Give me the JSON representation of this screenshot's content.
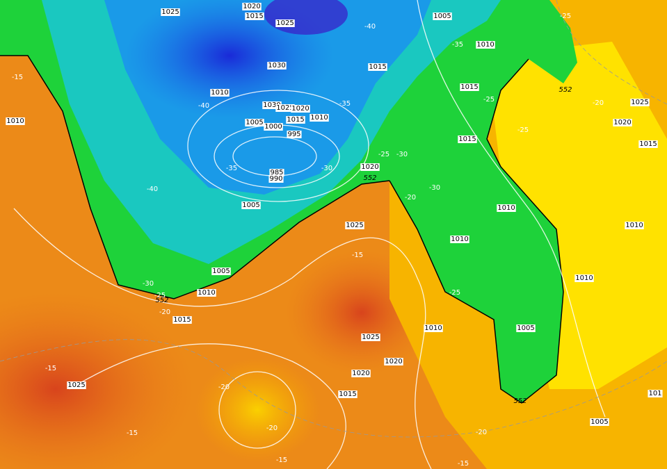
{
  "isobar_labels": [
    "1025",
    "1020",
    "1015",
    "1025",
    "1005",
    "1010",
    "1015",
    "1030",
    "1010",
    "1030",
    "1025",
    "1020",
    "1010",
    "1005",
    "1000",
    "1015",
    "995",
    "985",
    "990",
    "1020",
    "1015",
    "1015",
    "1010",
    "1025",
    "1020",
    "1015",
    "1010",
    "1010",
    "1010",
    "1005",
    "1025",
    "1005",
    "1010",
    "1015",
    "1010",
    "1010",
    "1005",
    "1025",
    "1020",
    "1020",
    "1015",
    "1025",
    "1005",
    "101"
  ],
  "temperature_labels": [
    "-40",
    "-35",
    "-15",
    "-40",
    "-35",
    "-35",
    "-30",
    "-25",
    "-30",
    "-40",
    "-30",
    "-20",
    "-25",
    "-25",
    "-20",
    "-25",
    "-15",
    "-30",
    "-25",
    "-20",
    "-25",
    "-15",
    "-20",
    "-20",
    "-15",
    "-20",
    "-15",
    "-15"
  ],
  "thickness_labels": [
    "552",
    "552",
    "552",
    "552"
  ]
}
